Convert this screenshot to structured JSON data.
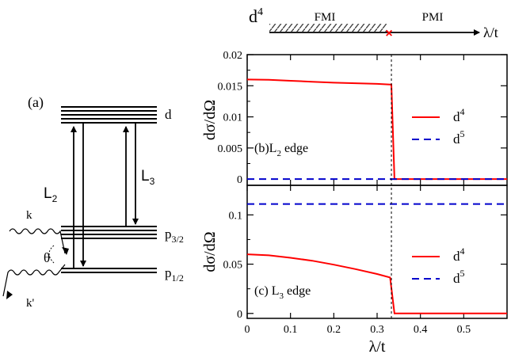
{
  "phase_bar": {
    "config": "d",
    "config_sup": "4",
    "left_phase": "FMI",
    "right_phase": "PMI",
    "axis": "λ/t",
    "marker": "×"
  },
  "diagram": {
    "panel_label": "(a)",
    "level_d": "d",
    "level_p32": "p",
    "level_p32_sub": "3/2",
    "level_p12": "p",
    "level_p12_sub": "1/2",
    "edge_l2": "L",
    "edge_l2_sub": "2",
    "edge_l3": "L",
    "edge_l3_sub": "3",
    "photon_in": "k",
    "photon_out": "k'",
    "angle": "θ"
  },
  "colors": {
    "d4": "#ff0000",
    "d5": "#0000cc",
    "axis": "#000000"
  },
  "chart_data": [
    {
      "type": "line",
      "panel": "(b)L2 edge",
      "panel_text": "(b)L",
      "panel_sub": "2",
      "panel_suffix": " edge",
      "ylabel": "dσ/dΩ",
      "xlim": [
        0,
        0.6
      ],
      "ylim": [
        -0.001,
        0.02
      ],
      "yticks": [
        0,
        0.005,
        0.01,
        0.015,
        0.02
      ],
      "ytick_labels": [
        "0",
        "0.005",
        "0.01",
        "0.015",
        "0.02"
      ],
      "transition_x": 0.333,
      "legend": [
        {
          "base": "d",
          "sup": "4"
        },
        {
          "base": "d",
          "sup": "5"
        }
      ],
      "series": [
        {
          "name": "d4",
          "style": "solid",
          "x": [
            0,
            0.05,
            0.1,
            0.15,
            0.2,
            0.25,
            0.3,
            0.33,
            0.333,
            0.34,
            0.35,
            0.4,
            0.45,
            0.5,
            0.55,
            0.6
          ],
          "y": [
            0.016,
            0.01595,
            0.0158,
            0.01565,
            0.0155,
            0.0154,
            0.0153,
            0.0152,
            0.0152,
            0,
            0,
            0,
            0,
            0,
            0,
            0
          ]
        },
        {
          "name": "d5",
          "style": "dashed",
          "x": [
            0,
            0.6
          ],
          "y": [
            0,
            0
          ]
        }
      ]
    },
    {
      "type": "line",
      "panel": "(c) L3 edge",
      "panel_text": "(c) L",
      "panel_sub": "3",
      "panel_suffix": " edge",
      "ylabel": "dσ/dΩ",
      "xlabel": "λ/t",
      "xlim": [
        0,
        0.6
      ],
      "ylim": [
        -0.005,
        0.13
      ],
      "yticks": [
        0,
        0.05,
        0.1
      ],
      "ytick_labels": [
        "0",
        "0.05",
        "0.1"
      ],
      "xticks": [
        0,
        0.1,
        0.2,
        0.3,
        0.4,
        0.5
      ],
      "xtick_labels": [
        "0",
        "0.1",
        "0.2",
        "0.3",
        "0.4",
        "0.5"
      ],
      "transition_x": 0.333,
      "legend": [
        {
          "base": "d",
          "sup": "4"
        },
        {
          "base": "d",
          "sup": "5"
        }
      ],
      "series": [
        {
          "name": "d4",
          "style": "solid",
          "x": [
            0,
            0.05,
            0.1,
            0.15,
            0.2,
            0.25,
            0.3,
            0.33,
            0.34,
            0.35,
            0.4,
            0.45,
            0.5,
            0.55,
            0.6
          ],
          "y": [
            0.06,
            0.059,
            0.0565,
            0.0535,
            0.0495,
            0.045,
            0.04,
            0.0365,
            0,
            0,
            0,
            0,
            0,
            0,
            0
          ]
        },
        {
          "name": "d5",
          "style": "dashed",
          "x": [
            0,
            0.6
          ],
          "y": [
            0.111,
            0.111
          ]
        }
      ]
    }
  ]
}
